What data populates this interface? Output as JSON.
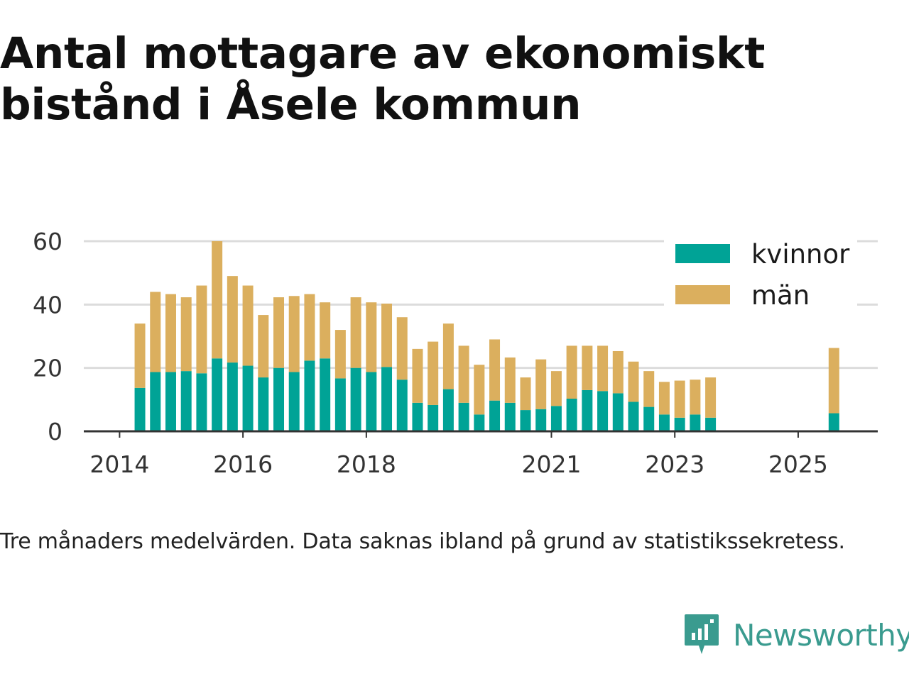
{
  "title": "Antal mottagare av ekonomiskt bistånd i Åsele kommun",
  "caption": "Tre månaders medelvärden. Data saknas ibland på grund av statistikssekretess.",
  "brand": {
    "name": "Newsworthy",
    "logo_icon": "newsworthy-logo-icon",
    "color": "#3a9b8f"
  },
  "chart_data": {
    "type": "bar",
    "stacked": true,
    "title": "Antal mottagare av ekonomiskt bistånd i Åsele kommun",
    "xlabel": "",
    "ylabel": "",
    "ylim": [
      0,
      60
    ],
    "yticks": [
      0,
      20,
      40,
      60
    ],
    "xlim": [
      2013.42,
      2026.29
    ],
    "xticks": [
      {
        "value": 2014.0,
        "label": "2014"
      },
      {
        "value": 2016.0,
        "label": "2016"
      },
      {
        "value": 2018.0,
        "label": "2018"
      },
      {
        "value": 2021.0,
        "label": "2021"
      },
      {
        "value": 2023.0,
        "label": "2023"
      },
      {
        "value": 2025.0,
        "label": "2025"
      }
    ],
    "grid": true,
    "legend_position": "top-right",
    "x": [
      2014.33,
      2014.58,
      2014.83,
      2015.08,
      2015.33,
      2015.58,
      2015.83,
      2016.08,
      2016.33,
      2016.58,
      2016.83,
      2017.08,
      2017.33,
      2017.58,
      2017.83,
      2018.08,
      2018.33,
      2018.58,
      2018.83,
      2019.08,
      2019.33,
      2019.58,
      2019.83,
      2020.08,
      2020.33,
      2020.58,
      2020.83,
      2021.08,
      2021.33,
      2021.58,
      2021.83,
      2022.08,
      2022.33,
      2022.58,
      2022.83,
      2023.08,
      2023.33,
      2023.58,
      2025.58
    ],
    "series": [
      {
        "name": "kvinnor",
        "color": "#00a396",
        "values": [
          13.7,
          18.7,
          18.7,
          19.0,
          18.3,
          23.0,
          21.7,
          20.7,
          17.0,
          20.0,
          18.7,
          22.3,
          23.0,
          16.7,
          20.0,
          18.7,
          20.3,
          16.3,
          9.0,
          8.3,
          13.3,
          9.0,
          5.3,
          9.7,
          9.0,
          6.7,
          7.0,
          8.0,
          10.3,
          13.0,
          12.7,
          12.0,
          9.3,
          7.7,
          5.3,
          4.3,
          5.3,
          4.3,
          5.7
        ]
      },
      {
        "name": "män",
        "color": "#dbaf5e",
        "values": [
          20.3,
          25.3,
          24.6,
          23.3,
          27.7,
          37.0,
          27.3,
          25.3,
          19.7,
          22.3,
          24.0,
          21.0,
          17.7,
          15.3,
          22.3,
          22.0,
          20.0,
          19.7,
          17.0,
          20.0,
          20.7,
          18.0,
          15.7,
          19.3,
          14.3,
          10.3,
          15.7,
          11.0,
          16.7,
          14.0,
          14.3,
          13.3,
          12.7,
          11.3,
          10.3,
          11.7,
          11.0,
          12.7,
          20.6
        ]
      }
    ]
  }
}
